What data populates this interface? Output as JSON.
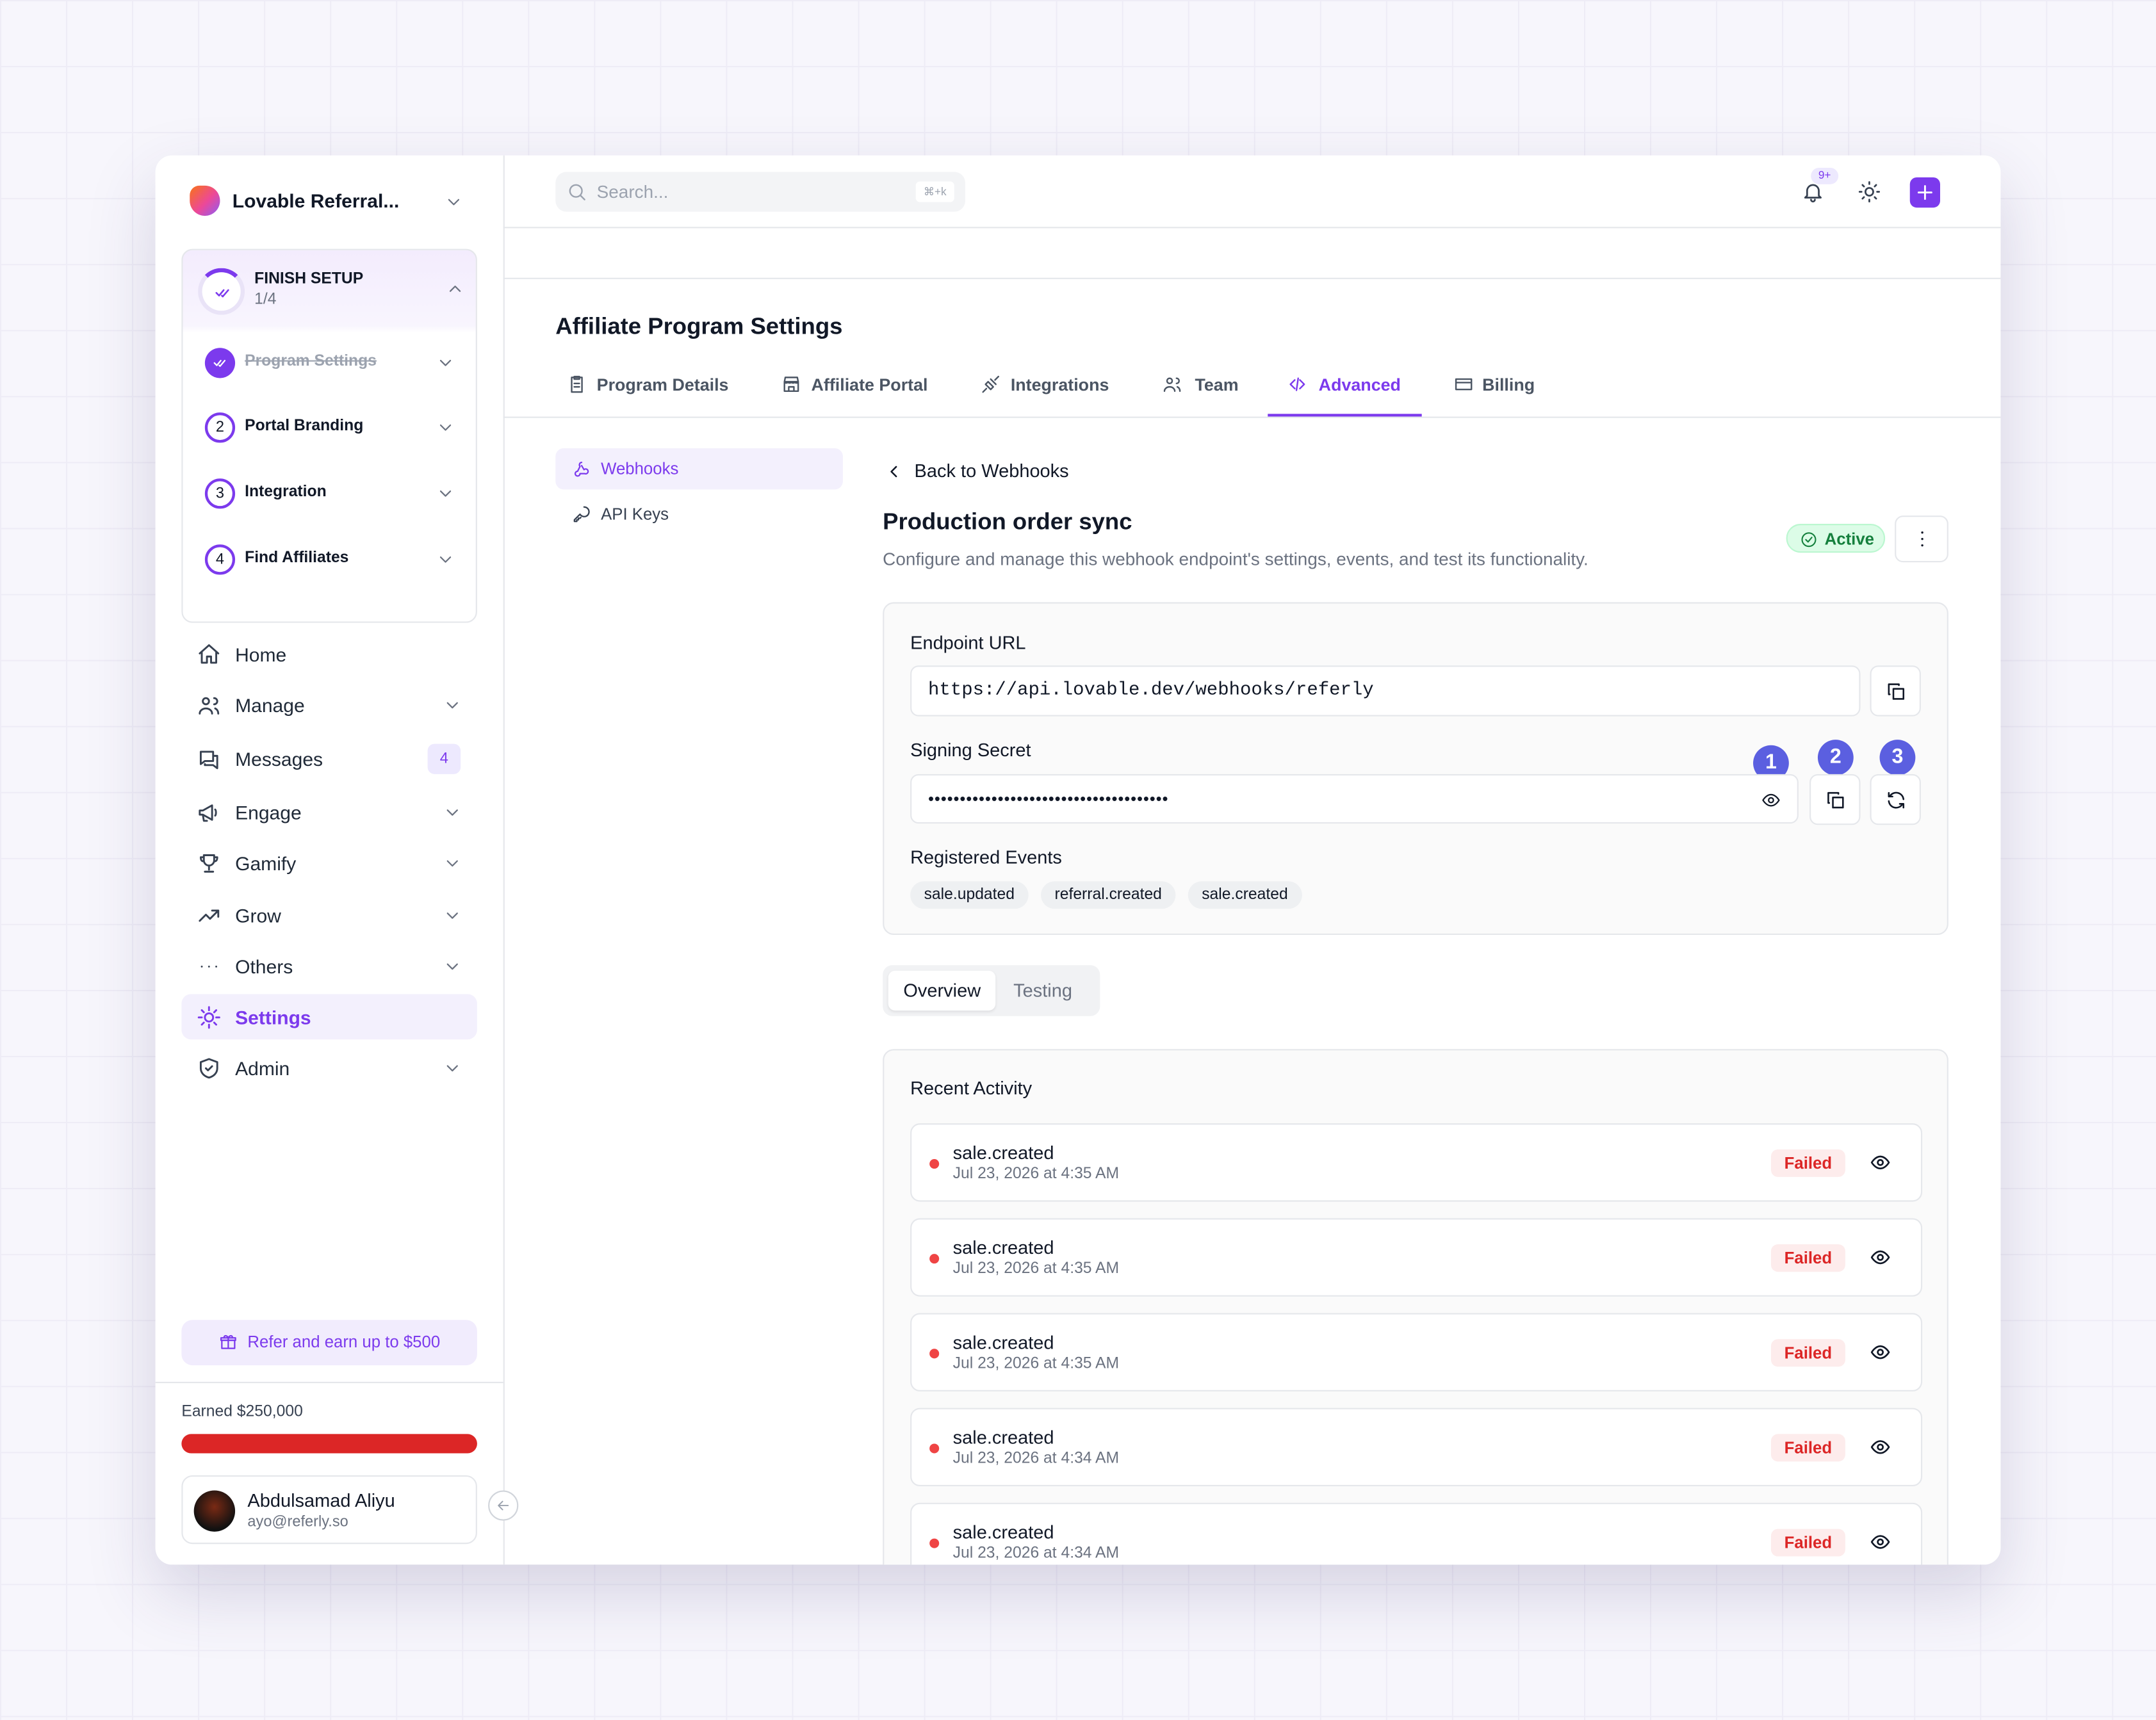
{
  "sidebar": {
    "workspace": "Lovable Referral...",
    "setup": {
      "title": "FINISH SETUP",
      "progress": "1/4",
      "steps": [
        {
          "label": "Program Settings",
          "done": true
        },
        {
          "number": "2",
          "label": "Portal Branding"
        },
        {
          "number": "3",
          "label": "Integration"
        },
        {
          "number": "4",
          "label": "Find Affiliates"
        }
      ]
    },
    "nav": [
      {
        "label": "Home",
        "icon": "home"
      },
      {
        "label": "Manage",
        "icon": "users",
        "expandable": true
      },
      {
        "label": "Messages",
        "icon": "chat",
        "badge": "4"
      },
      {
        "label": "Engage",
        "icon": "megaphone",
        "expandable": true
      },
      {
        "label": "Gamify",
        "icon": "trophy",
        "expandable": true
      },
      {
        "label": "Grow",
        "icon": "trend",
        "expandable": true
      },
      {
        "label": "Others",
        "icon": "dots",
        "expandable": true
      },
      {
        "label": "Settings",
        "icon": "gear",
        "active": true
      },
      {
        "label": "Admin",
        "icon": "shield",
        "expandable": true
      }
    ],
    "referral": "Refer and earn up to $500",
    "earned": "Earned $250,000",
    "user": {
      "name": "Abdulsamad Aliyu",
      "email": "ayo@referly.so"
    }
  },
  "topbar": {
    "search_placeholder": "Search...",
    "shortcut": "⌘+k",
    "notification_badge": "9+"
  },
  "page": {
    "title": "Affiliate Program Settings",
    "tabs": [
      {
        "label": "Program Details",
        "icon": "doc"
      },
      {
        "label": "Affiliate Portal",
        "icon": "store"
      },
      {
        "label": "Integrations",
        "icon": "plug"
      },
      {
        "label": "Team",
        "icon": "users"
      },
      {
        "label": "Advanced",
        "icon": "code",
        "active": true
      },
      {
        "label": "Billing",
        "icon": "card"
      }
    ],
    "subnav": [
      {
        "label": "Webhooks",
        "icon": "webhook",
        "active": true
      },
      {
        "label": "API Keys",
        "icon": "key"
      }
    ]
  },
  "webhook": {
    "back": "Back to Webhooks",
    "name": "Production order sync",
    "description": "Configure and manage this webhook endpoint's settings, events, and test its functionality.",
    "status": "Active",
    "endpoint_label": "Endpoint URL",
    "endpoint_url": "https://api.lovable.dev/webhooks/referly",
    "secret_label": "Signing Secret",
    "secret_masked": "••••••••••••••••••••••••••••••••••••••",
    "annotations": [
      "1",
      "2",
      "3"
    ],
    "events_label": "Registered Events",
    "events": [
      "sale.updated",
      "referral.created",
      "sale.created"
    ]
  },
  "detail_tabs": [
    {
      "label": "Overview",
      "active": true
    },
    {
      "label": "Testing"
    }
  ],
  "activity": {
    "title": "Recent Activity",
    "items": [
      {
        "event": "sale.created",
        "time": "Jul 23, 2026 at 4:35 AM",
        "status": "Failed"
      },
      {
        "event": "sale.created",
        "time": "Jul 23, 2026 at 4:35 AM",
        "status": "Failed"
      },
      {
        "event": "sale.created",
        "time": "Jul 23, 2026 at 4:35 AM",
        "status": "Failed"
      },
      {
        "event": "sale.created",
        "time": "Jul 23, 2026 at 4:34 AM",
        "status": "Failed"
      },
      {
        "event": "sale.created",
        "time": "Jul 23, 2026 at 4:34 AM",
        "status": "Failed"
      }
    ]
  }
}
